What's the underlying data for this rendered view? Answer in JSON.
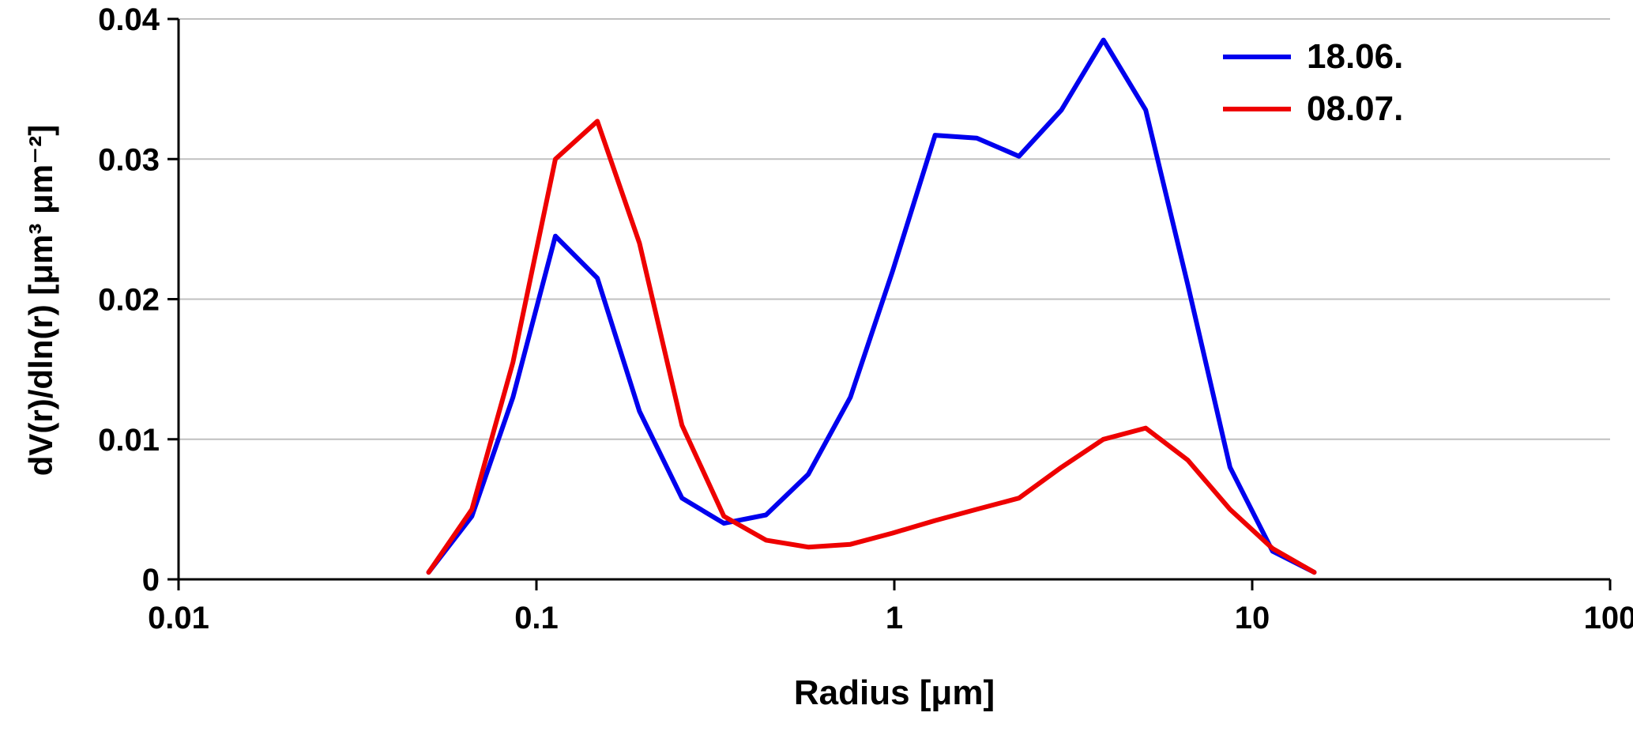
{
  "chart_data": {
    "type": "line",
    "title": "",
    "xlabel": "Radius [μm]",
    "ylabel": "dV(r)/dln(r) [μm³ μm⁻²]",
    "x_scale": "log",
    "xlim": [
      0.01,
      100
    ],
    "ylim": [
      0,
      0.04
    ],
    "x_ticks": [
      0.01,
      0.1,
      1,
      10,
      100
    ],
    "x_tick_labels": [
      "0.01",
      "0.1",
      "1",
      "10",
      "100"
    ],
    "y_ticks": [
      0,
      0.01,
      0.02,
      0.03,
      0.04
    ],
    "y_tick_labels": [
      "0",
      "0.01",
      "0.02",
      "0.03",
      "0.04"
    ],
    "grid": "horizontal-major",
    "legend_position": "top-right",
    "series": [
      {
        "name": "18.06.",
        "color": "#0000ee",
        "x": [
          0.05,
          0.066,
          0.086,
          0.113,
          0.148,
          0.194,
          0.255,
          0.334,
          0.438,
          0.575,
          0.754,
          0.989,
          1.3,
          1.7,
          2.23,
          2.93,
          3.84,
          5.04,
          6.61,
          8.67,
          11.4,
          14.9
        ],
        "y": [
          0.0005,
          0.0045,
          0.013,
          0.0245,
          0.0215,
          0.012,
          0.0058,
          0.004,
          0.0046,
          0.0075,
          0.013,
          0.022,
          0.0317,
          0.0315,
          0.0302,
          0.0335,
          0.0385,
          0.0335,
          0.021,
          0.008,
          0.002,
          0.0005
        ]
      },
      {
        "name": "08.07.",
        "color": "#ee0000",
        "x": [
          0.05,
          0.066,
          0.086,
          0.113,
          0.148,
          0.194,
          0.255,
          0.334,
          0.438,
          0.575,
          0.754,
          0.989,
          1.3,
          1.7,
          2.23,
          2.93,
          3.84,
          5.04,
          6.61,
          8.67,
          11.4,
          14.9
        ],
        "y": [
          0.0005,
          0.005,
          0.0155,
          0.03,
          0.0327,
          0.024,
          0.011,
          0.0045,
          0.0028,
          0.0023,
          0.0025,
          0.0033,
          0.0042,
          0.005,
          0.0058,
          0.008,
          0.01,
          0.0108,
          0.0085,
          0.005,
          0.0022,
          0.0005
        ]
      }
    ]
  }
}
